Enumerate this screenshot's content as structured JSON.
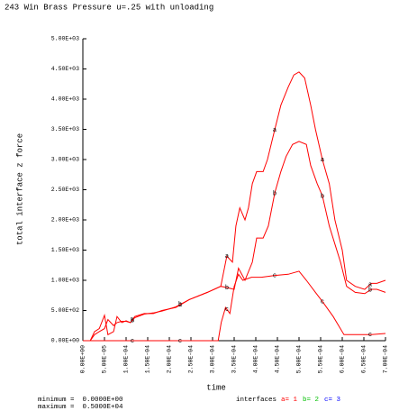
{
  "chart_data": {
    "type": "line",
    "title": "243 Win Brass Pressure u=.25 with unloading",
    "x_label": "time",
    "y_label": "total interface z force",
    "xlim": [
      0,
      0.0007
    ],
    "ylim": [
      0,
      5000
    ],
    "xticks": [
      {
        "value": 0,
        "label": "0.00E+00"
      },
      {
        "value": 5e-05,
        "label": "5.00E-05"
      },
      {
        "value": 0.0001,
        "label": "1.00E-04"
      },
      {
        "value": 0.00015,
        "label": "1.50E-04"
      },
      {
        "value": 0.0002,
        "label": "2.00E-04"
      },
      {
        "value": 0.00025,
        "label": "2.50E-04"
      },
      {
        "value": 0.0003,
        "label": "3.00E-04"
      },
      {
        "value": 0.00035,
        "label": "3.50E-04"
      },
      {
        "value": 0.0004,
        "label": "4.00E-04"
      },
      {
        "value": 0.00045,
        "label": "4.50E-04"
      },
      {
        "value": 0.0005,
        "label": "5.00E-04"
      },
      {
        "value": 0.00055,
        "label": "5.50E-04"
      },
      {
        "value": 0.0006,
        "label": "6.00E-04"
      },
      {
        "value": 0.00065,
        "label": "6.50E-04"
      },
      {
        "value": 0.0007,
        "label": "7.00E-04"
      }
    ],
    "yticks": [
      {
        "value": 0,
        "label": "0.00E+00"
      },
      {
        "value": 500,
        "label": "5.00E+02"
      },
      {
        "value": 1000,
        "label": "1.00E+03"
      },
      {
        "value": 1500,
        "label": "1.50E+03"
      },
      {
        "value": 2000,
        "label": "2.00E+03"
      },
      {
        "value": 2500,
        "label": "2.50E+03"
      },
      {
        "value": 3000,
        "label": "3.00E+03"
      },
      {
        "value": 3500,
        "label": "3.50E+03"
      },
      {
        "value": 4000,
        "label": "4.00E+03"
      },
      {
        "value": 4500,
        "label": "4.50E+03"
      },
      {
        "value": 5000,
        "label": "5.00E+03"
      }
    ],
    "grid": false,
    "legend_title": "interfaces",
    "series": [
      {
        "name": "a= 1",
        "marker": "a",
        "color": "#ff0000",
        "legend_color": "#ff0000",
        "x": [
          0,
          1.7e-05,
          2.7e-05,
          3.8e-05,
          5e-05,
          5.8e-05,
          7.1e-05,
          7.9e-05,
          9e-05,
          0.0001,
          0.00011,
          0.00012,
          0.000142,
          0.000163,
          0.000183,
          0.000215,
          0.000246,
          0.000288,
          0.000319,
          0.000333,
          0.000346,
          0.000354,
          0.000363,
          0.000375,
          0.000383,
          0.000392,
          0.000402,
          0.000417,
          0.000427,
          0.000444,
          0.000458,
          0.000475,
          0.000488,
          0.0005,
          0.000513,
          0.000527,
          0.000538,
          0.000554,
          0.00057,
          0.000583,
          0.0006,
          0.00061,
          0.00063,
          0.000652,
          0.000667,
          0.00068,
          0.0007
        ],
        "values": [
          0,
          0,
          150,
          200,
          420,
          100,
          150,
          400,
          300,
          330,
          300,
          400,
          450,
          450,
          500,
          550,
          680,
          800,
          900,
          1400,
          1300,
          1900,
          2200,
          2000,
          2200,
          2600,
          2800,
          2800,
          3000,
          3500,
          3900,
          4200,
          4400,
          4450,
          4350,
          3900,
          3500,
          3000,
          2600,
          2000,
          1500,
          1000,
          900,
          850,
          950,
          950,
          1000
        ]
      },
      {
        "name": "b= 2",
        "marker": "b",
        "color": "#ff0000",
        "legend_color": "#00c000",
        "x": [
          0,
          1.7e-05,
          2.7e-05,
          3.8e-05,
          5e-05,
          5.8e-05,
          7.1e-05,
          7.9e-05,
          9e-05,
          0.0001,
          0.00011,
          0.00012,
          0.000142,
          0.000163,
          0.000183,
          0.000215,
          0.000246,
          0.000288,
          0.000319,
          0.000333,
          0.00035,
          0.00036,
          0.000375,
          0.000392,
          0.000402,
          0.000417,
          0.000429,
          0.000444,
          0.000458,
          0.00047,
          0.000485,
          0.0005,
          0.000517,
          0.000527,
          0.000542,
          0.000554,
          0.00057,
          0.000583,
          0.000596,
          0.00061,
          0.00063,
          0.000652,
          0.000667,
          0.00068,
          0.0007
        ],
        "values": [
          0,
          0,
          100,
          150,
          200,
          350,
          250,
          300,
          320,
          320,
          300,
          380,
          440,
          460,
          490,
          560,
          680,
          800,
          900,
          880,
          850,
          1200,
          1000,
          1300,
          1700,
          1700,
          1900,
          2450,
          2800,
          3050,
          3250,
          3300,
          3250,
          2900,
          2600,
          2400,
          1900,
          1600,
          1300,
          900,
          800,
          780,
          850,
          850,
          800
        ]
      },
      {
        "name": "c= 3",
        "marker": "c",
        "color": "#ff0000",
        "legend_color": "#0000ff",
        "x": [
          0,
          0.000313,
          0.00032,
          0.00033,
          0.00034,
          0.00035,
          0.00036,
          0.00037,
          0.00039,
          0.000413,
          0.000444,
          0.000475,
          0.0005,
          0.000517,
          0.000538,
          0.000554,
          0.000579,
          0.000604,
          0.00063,
          0.000667,
          0.0007
        ],
        "values": [
          0,
          0,
          300,
          550,
          450,
          900,
          1100,
          1000,
          1050,
          1050,
          1080,
          1100,
          1150,
          1000,
          800,
          650,
          400,
          100,
          100,
          100,
          120
        ]
      }
    ],
    "minimum_text": "minimum =  0.0000E+00",
    "maximum_text": "maximum =  0.5000E+04"
  }
}
